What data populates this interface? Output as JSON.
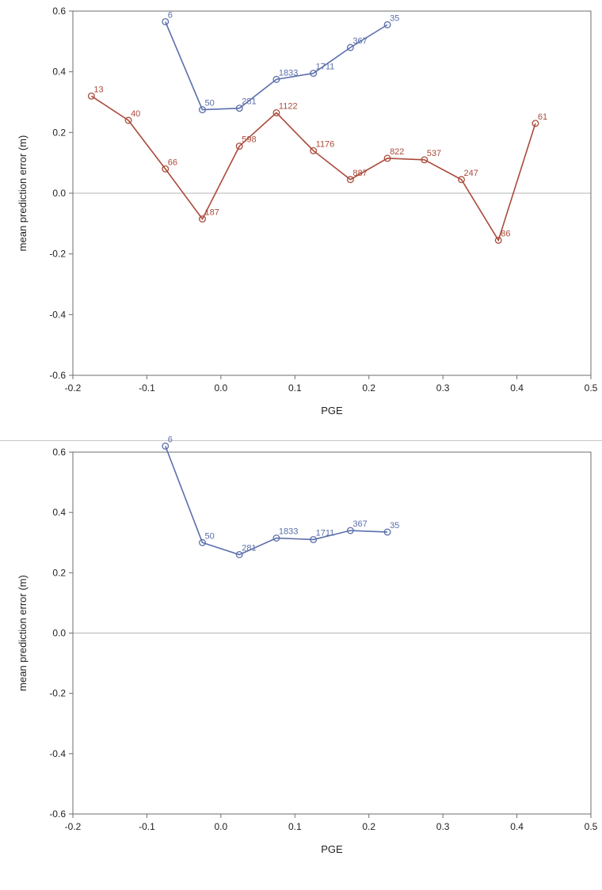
{
  "colors": {
    "blue": "#5a6eaa",
    "red": "#aa4a3a",
    "frame": "#6e6e6e",
    "reference": "#b4b4b4"
  },
  "chart_data": [
    {
      "type": "line",
      "title": "",
      "xlabel": "PGE",
      "ylabel": "mean prediction error (m)",
      "xlim": [
        -0.2,
        0.5
      ],
      "ylim": [
        -0.6,
        0.6
      ],
      "x_ticks": [
        "-0.2",
        "-0.1",
        "0.0",
        "0.1",
        "0.2",
        "0.3",
        "0.4",
        "0.5"
      ],
      "y_ticks": [
        "-0.6",
        "-0.4",
        "-0.2",
        "0.0",
        "0.2",
        "0.4",
        "0.6"
      ],
      "reference_line_y": 0,
      "grid": false,
      "series": [
        {
          "color": "#5a6eaa",
          "x": [
            -0.075,
            -0.025,
            0.025,
            0.075,
            0.125,
            0.175,
            0.225
          ],
          "y": [
            0.565,
            0.275,
            0.28,
            0.375,
            0.395,
            0.48,
            0.555
          ],
          "labels": [
            "6",
            "50",
            "281",
            "1833",
            "1711",
            "367",
            "35"
          ]
        },
        {
          "color": "#aa4a3a",
          "x": [
            -0.175,
            -0.125,
            -0.075,
            -0.025,
            0.025,
            0.075,
            0.125,
            0.175,
            0.225,
            0.275,
            0.325,
            0.375,
            0.425
          ],
          "y": [
            0.32,
            0.24,
            0.08,
            -0.085,
            0.155,
            0.265,
            0.14,
            0.045,
            0.115,
            0.11,
            0.045,
            -0.155,
            0.23
          ],
          "labels": [
            "13",
            "40",
            "66",
            "187",
            "598",
            "1122",
            "1176",
            "887",
            "822",
            "537",
            "247",
            "86",
            "61"
          ]
        }
      ]
    },
    {
      "type": "line",
      "title": "",
      "xlabel": "PGE",
      "ylabel": "mean prediction error (m)",
      "xlim": [
        -0.2,
        0.5
      ],
      "ylim": [
        -0.6,
        0.6
      ],
      "x_ticks": [
        "-0.2",
        "-0.1",
        "0.0",
        "0.1",
        "0.2",
        "0.3",
        "0.4",
        "0.5"
      ],
      "y_ticks": [
        "-0.6",
        "-0.4",
        "-0.2",
        "0.0",
        "0.2",
        "0.4",
        "0.6"
      ],
      "reference_line_y": 0,
      "grid": false,
      "series": [
        {
          "color": "#5a6eaa",
          "x": [
            -0.075,
            -0.025,
            0.025,
            0.075,
            0.125,
            0.175,
            0.225
          ],
          "y": [
            0.62,
            0.3,
            0.26,
            0.315,
            0.31,
            0.34,
            0.335
          ],
          "labels": [
            "6",
            "50",
            "281",
            "1833",
            "1711",
            "367",
            "35"
          ]
        }
      ]
    }
  ]
}
